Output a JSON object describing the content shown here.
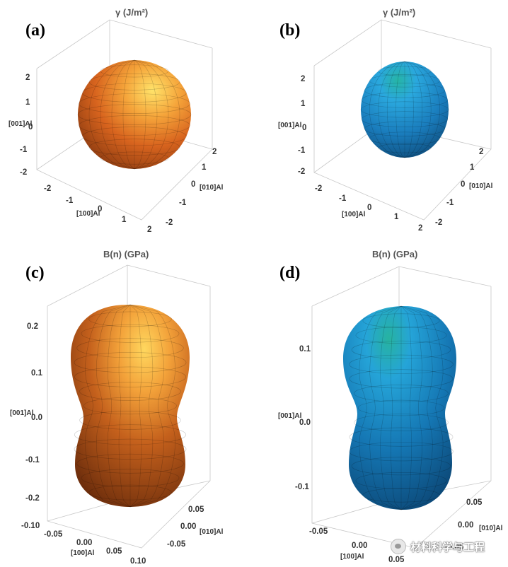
{
  "chart_data": [
    {
      "type": "3d-surface",
      "panel_label": "(a)",
      "title": "γ (J/m²)",
      "surface_color": "orange",
      "shape": "sphere",
      "axes": {
        "x": {
          "label": "[100]Al",
          "ticks": [
            "-2",
            "-1",
            "0",
            "1",
            "2"
          ],
          "range": [
            -2,
            2
          ]
        },
        "y": {
          "label": "[010]Al",
          "ticks": [
            "-2",
            "-1",
            "0",
            "1",
            "2"
          ],
          "range": [
            -2,
            2
          ]
        },
        "z": {
          "label": "[001]Al",
          "ticks": [
            "-2",
            "-1",
            "0",
            "1",
            "2"
          ],
          "range": [
            -2,
            2
          ]
        }
      }
    },
    {
      "type": "3d-surface",
      "panel_label": "(b)",
      "title": "γ (J/m²)",
      "surface_color": "blue",
      "shape": "prolate ellipsoid",
      "axes": {
        "x": {
          "label": "[100]Al",
          "ticks": [
            "-2",
            "-1",
            "0",
            "1",
            "2"
          ],
          "range": [
            -2,
            2
          ]
        },
        "y": {
          "label": "[010]Al",
          "ticks": [
            "-2",
            "-1",
            "0",
            "1",
            "2"
          ],
          "range": [
            -2,
            2
          ]
        },
        "z": {
          "label": "[001]Al",
          "ticks": [
            "-2",
            "-1",
            "0",
            "1",
            "2"
          ],
          "range": [
            -2,
            2
          ]
        }
      }
    },
    {
      "type": "3d-surface",
      "panel_label": "(c)",
      "title": "B(n) (GPa)",
      "surface_color": "orange",
      "shape": "peanut",
      "axes": {
        "x": {
          "label": "[100]Al",
          "ticks": [
            "-0.10",
            "-0.05",
            "0.00",
            "0.05",
            "0.10"
          ],
          "range": [
            -0.1,
            0.1
          ]
        },
        "y": {
          "label": "[010]Al",
          "ticks": [
            "-0.05",
            "0.00",
            "0.05"
          ],
          "range": [
            -0.08,
            0.08
          ]
        },
        "z": {
          "label": "[001]Al",
          "ticks": [
            "-0.2",
            "-0.1",
            "0.0",
            "0.1",
            "0.2"
          ],
          "range": [
            -0.25,
            0.25
          ]
        }
      }
    },
    {
      "type": "3d-surface",
      "panel_label": "(d)",
      "title": "B(n) (GPa)",
      "surface_color": "blue",
      "shape": "peanut",
      "axes": {
        "x": {
          "label": "[100]Al",
          "ticks": [
            "-0.05",
            "0.00",
            "0.05"
          ],
          "range": [
            -0.08,
            0.08
          ]
        },
        "y": {
          "label": "[010]Al",
          "ticks": [
            "-0.05",
            "0.00",
            "0.05"
          ],
          "range": [
            -0.08,
            0.08
          ]
        },
        "z": {
          "label": "[001]Al",
          "ticks": [
            "-0.1",
            "0.0",
            "0.1"
          ],
          "range": [
            -0.15,
            0.15
          ]
        }
      }
    }
  ],
  "watermark": {
    "text": "材料科学与工程",
    "icon": "wechat-icon"
  }
}
